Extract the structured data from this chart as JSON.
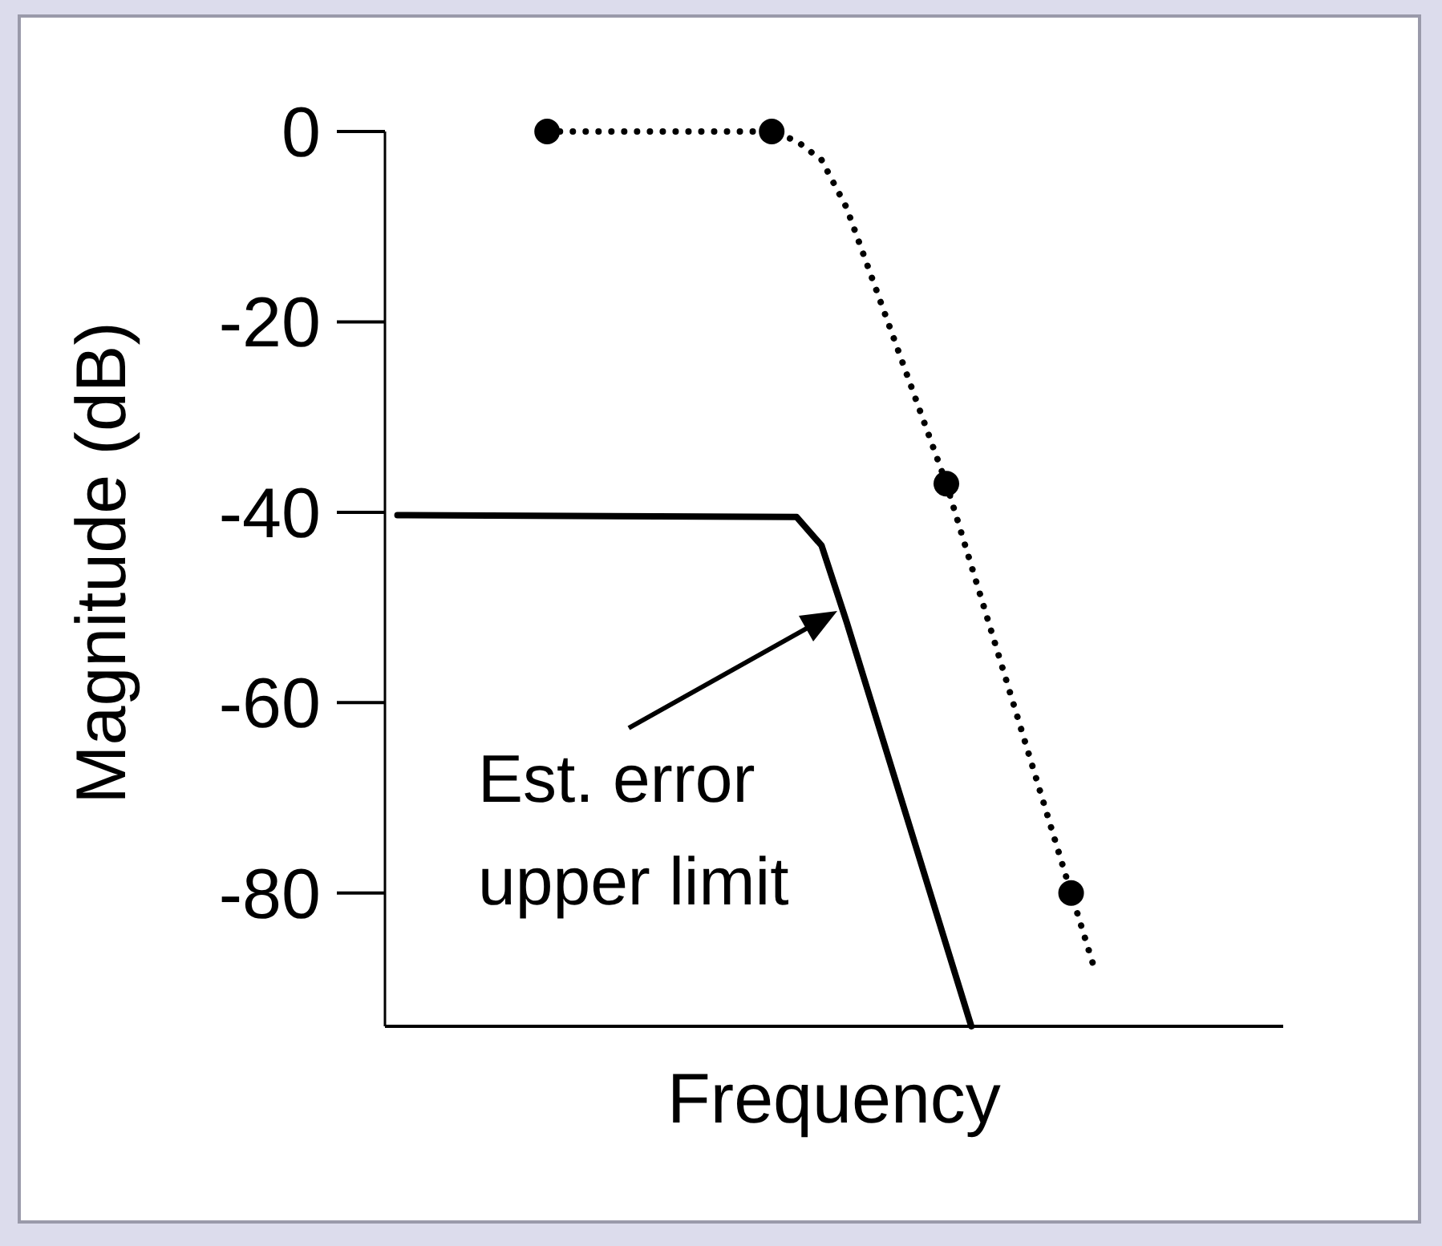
{
  "chart_data": {
    "type": "line",
    "xlabel": "Frequency",
    "ylabel": "Magnitude (dB)",
    "categories": [
      null,
      null,
      null,
      null,
      null,
      null,
      null,
      null,
      null,
      null,
      null,
      null,
      null,
      null,
      null,
      null,
      null,
      null,
      null,
      null,
      null,
      null,
      null,
      null,
      null,
      null,
      null,
      null,
      null,
      null,
      null,
      null,
      null,
      null,
      null,
      null
    ],
    "ylim": [
      -94,
      0
    ],
    "yticks": [
      0,
      -20,
      -40,
      -60,
      -80
    ],
    "tick_labels": "y",
    "series": [
      {
        "type": "line",
        "color": "#000000",
        "line_style": "solid",
        "marker": "none",
        "values": [
          -40.3,
          null,
          null,
          null,
          null,
          null,
          null,
          null,
          null,
          null,
          null,
          null,
          null,
          null,
          null,
          null,
          -40.5,
          -43.5,
          -51.5,
          null,
          null,
          null,
          -85.5,
          -94,
          null,
          null,
          null,
          null,
          null,
          null,
          null,
          null,
          null,
          null,
          null,
          null
        ]
      },
      {
        "type": "line",
        "color": "#000000",
        "line_style": "dotted",
        "marker": "none",
        "values": [
          null,
          null,
          null,
          null,
          null,
          null,
          0,
          null,
          null,
          null,
          null,
          null,
          null,
          null,
          null,
          0,
          -1,
          -3,
          -8,
          null,
          null,
          null,
          -37,
          null,
          null,
          null,
          null,
          -80,
          -88.5,
          null,
          null,
          null,
          null,
          null,
          null,
          null
        ]
      },
      {
        "type": "scatter",
        "color": "#000000",
        "marker": "circle",
        "values": [
          null,
          null,
          null,
          null,
          null,
          null,
          0,
          null,
          null,
          null,
          null,
          null,
          null,
          null,
          null,
          0,
          null,
          null,
          null,
          null,
          null,
          null,
          -37,
          null,
          null,
          null,
          null,
          -80,
          null,
          null,
          null,
          null,
          null,
          null,
          null,
          null
        ]
      }
    ],
    "annotations": [
      "Est. error\nupper limit"
    ]
  }
}
